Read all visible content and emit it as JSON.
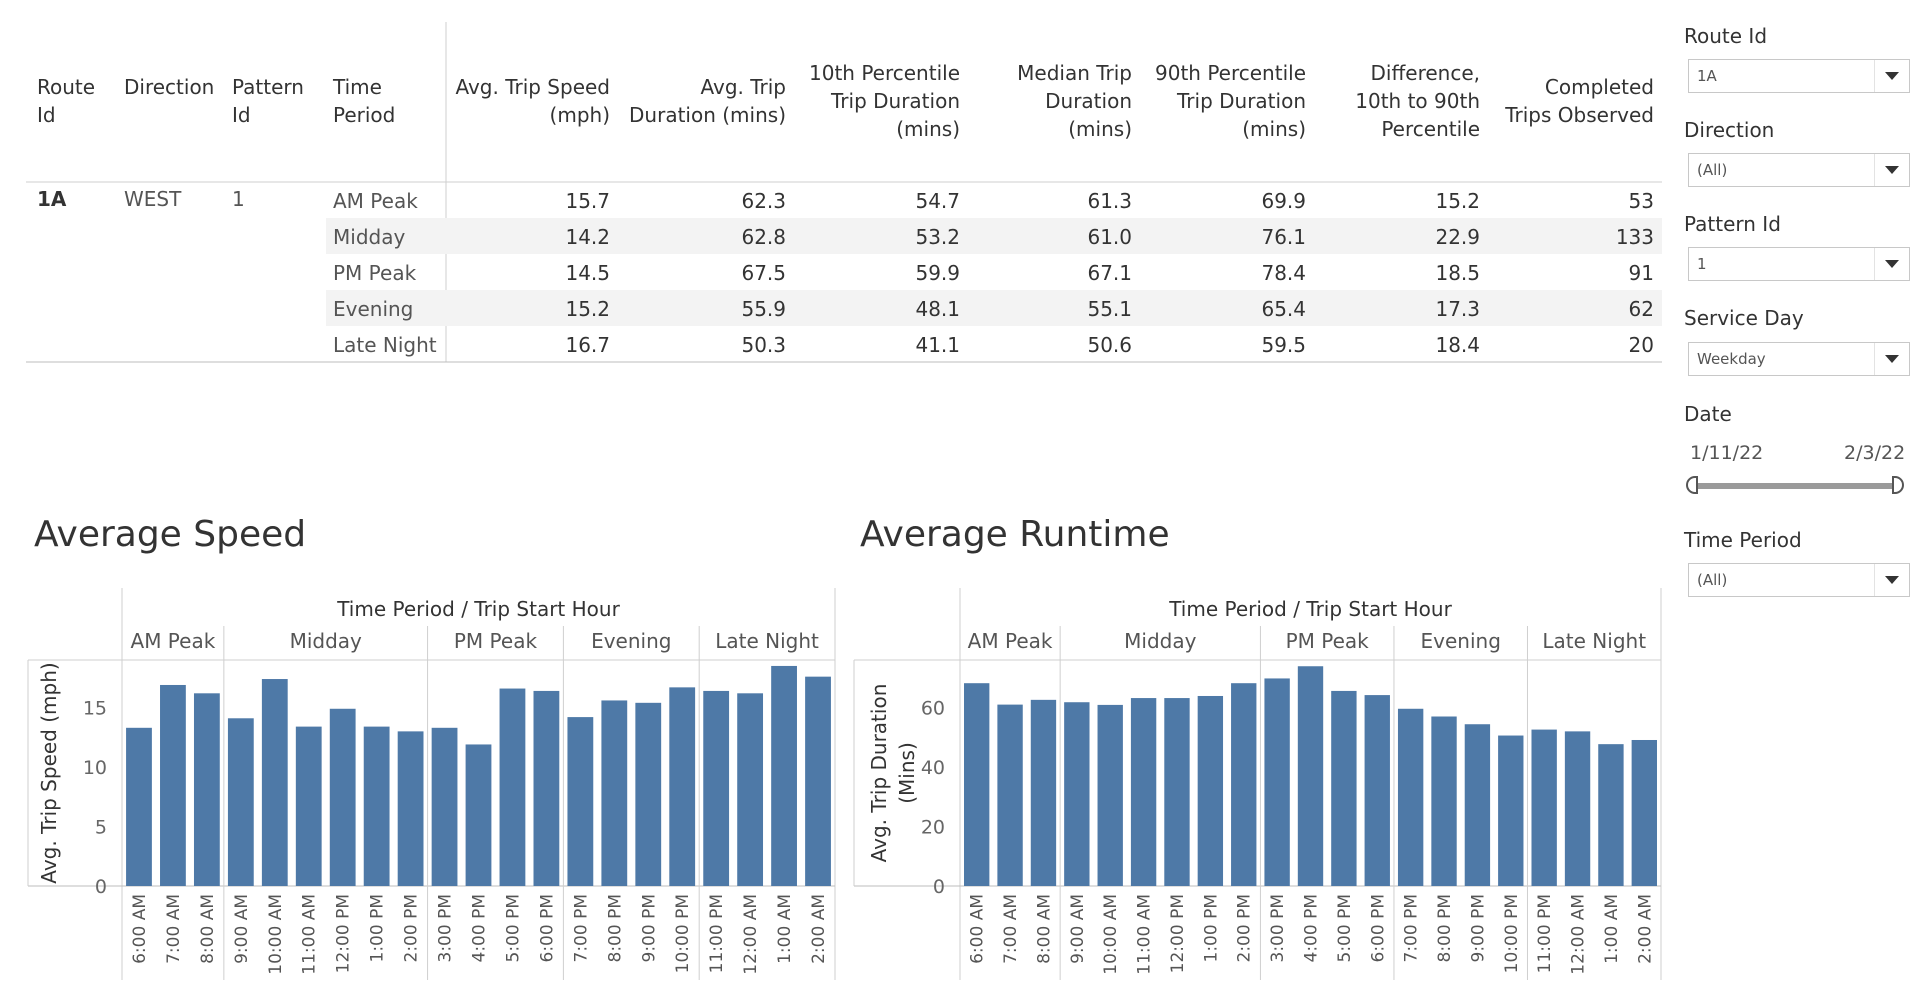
{
  "table": {
    "headers": [
      {
        "lines": [
          "Route",
          "Id"
        ],
        "align": "start"
      },
      {
        "lines": [
          "Direction"
        ],
        "align": "start"
      },
      {
        "lines": [
          "Pattern",
          "Id"
        ],
        "align": "start"
      },
      {
        "lines": [
          "Time",
          "Period"
        ],
        "align": "start"
      },
      {
        "lines": [
          "Avg. Trip Speed",
          "(mph)"
        ],
        "align": "end"
      },
      {
        "lines": [
          "Avg. Trip",
          "Duration (mins)"
        ],
        "align": "end"
      },
      {
        "lines": [
          "10th Percentile",
          "Trip Duration",
          "(mins)"
        ],
        "align": "end"
      },
      {
        "lines": [
          "Median Trip",
          "Duration",
          "(mins)"
        ],
        "align": "end"
      },
      {
        "lines": [
          "90th Percentile",
          "Trip Duration",
          "(mins)"
        ],
        "align": "end"
      },
      {
        "lines": [
          "Difference,",
          "10th to 90th",
          "Percentile"
        ],
        "align": "end"
      },
      {
        "lines": [
          "Completed",
          "Trips Observed"
        ],
        "align": "end"
      }
    ],
    "route_id": "1A",
    "direction": "WEST",
    "pattern_id": "1",
    "rows": [
      {
        "period": "AM Peak",
        "values": [
          "15.7",
          "62.3",
          "54.7",
          "61.3",
          "69.9",
          "15.2",
          "53"
        ]
      },
      {
        "period": "Midday",
        "values": [
          "14.2",
          "62.8",
          "53.2",
          "61.0",
          "76.1",
          "22.9",
          "133"
        ]
      },
      {
        "period": "PM Peak",
        "values": [
          "14.5",
          "67.5",
          "59.9",
          "67.1",
          "78.4",
          "18.5",
          "91"
        ]
      },
      {
        "period": "Evening",
        "values": [
          "15.2",
          "55.9",
          "48.1",
          "55.1",
          "65.4",
          "17.3",
          "62"
        ]
      },
      {
        "period": "Late Night",
        "values": [
          "16.7",
          "50.3",
          "41.1",
          "50.6",
          "59.5",
          "18.4",
          "20"
        ]
      }
    ]
  },
  "filters": {
    "route_id": {
      "label": "Route Id",
      "value": "1A"
    },
    "direction": {
      "label": "Direction",
      "value": "(All)"
    },
    "pattern_id": {
      "label": "Pattern Id",
      "value": "1"
    },
    "service_day": {
      "label": "Service Day",
      "value": "Weekday"
    },
    "date": {
      "label": "Date",
      "start": "1/11/22",
      "end": "2/3/22"
    },
    "time_period": {
      "label": "Time Period",
      "value": "(All)"
    }
  },
  "chart_data": [
    {
      "type": "bar",
      "title": "Average Speed",
      "header_title": "Time Period  /  Trip Start Hour",
      "ylabel": "Avg. Trip Speed (mph)",
      "ylim": [
        0,
        19
      ],
      "yticks": [
        0,
        5,
        10,
        15
      ],
      "color": "#4e79a7",
      "groups": [
        {
          "name": "AM Peak",
          "count": 3
        },
        {
          "name": "Midday",
          "count": 6
        },
        {
          "name": "PM Peak",
          "count": 4
        },
        {
          "name": "Evening",
          "count": 4
        },
        {
          "name": "Late Night",
          "count": 4
        }
      ],
      "categories": [
        "6:00 AM",
        "7:00 AM",
        "8:00 AM",
        "9:00 AM",
        "10:00 AM",
        "11:00 AM",
        "12:00 PM",
        "1:00 PM",
        "2:00 PM",
        "3:00 PM",
        "4:00 PM",
        "5:00 PM",
        "6:00 PM",
        "7:00 PM",
        "8:00 PM",
        "9:00 PM",
        "10:00 PM",
        "11:00 PM",
        "12:00 AM",
        "1:00 AM",
        "2:00 AM"
      ],
      "values": [
        13.3,
        16.9,
        16.2,
        14.1,
        17.4,
        13.4,
        14.9,
        13.4,
        13.0,
        13.3,
        11.9,
        16.6,
        16.4,
        14.2,
        15.6,
        15.4,
        16.7,
        16.4,
        16.2,
        18.5,
        17.6
      ]
    },
    {
      "type": "bar",
      "title": "Average Runtime",
      "header_title": "Time Period  /  Trip Start Hour",
      "ylabel_lines": [
        "Avg. Trip Duration",
        "(Mins)"
      ],
      "ylim": [
        0,
        76
      ],
      "yticks": [
        0,
        20,
        40,
        60
      ],
      "color": "#4e79a7",
      "groups": [
        {
          "name": "AM Peak",
          "count": 3
        },
        {
          "name": "Midday",
          "count": 6
        },
        {
          "name": "PM Peak",
          "count": 4
        },
        {
          "name": "Evening",
          "count": 4
        },
        {
          "name": "Late Night",
          "count": 4
        }
      ],
      "categories": [
        "6:00 AM",
        "7:00 AM",
        "8:00 AM",
        "9:00 AM",
        "10:00 AM",
        "11:00 AM",
        "12:00 PM",
        "1:00 PM",
        "2:00 PM",
        "3:00 PM",
        "4:00 PM",
        "5:00 PM",
        "6:00 PM",
        "7:00 PM",
        "8:00 PM",
        "9:00 PM",
        "10:00 PM",
        "11:00 PM",
        "12:00 AM",
        "1:00 AM",
        "2:00 AM"
      ],
      "values": [
        68.2,
        61.0,
        62.6,
        61.8,
        60.9,
        63.2,
        63.2,
        63.9,
        68.2,
        69.8,
        73.9,
        65.6,
        64.2,
        59.6,
        57.0,
        54.4,
        50.6,
        52.6,
        52.0,
        47.7,
        49.1
      ]
    }
  ]
}
